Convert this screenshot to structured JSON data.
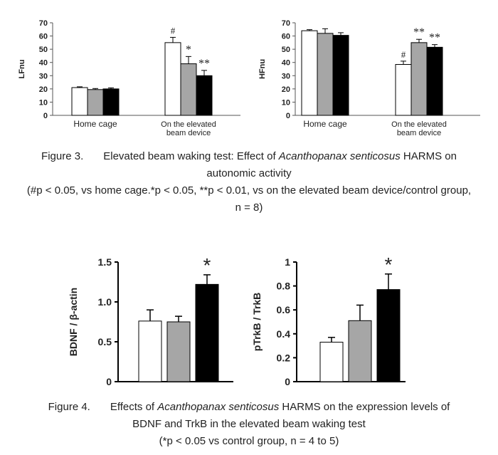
{
  "chart_data": [
    {
      "type": "bar",
      "ylabel": "LFnu",
      "ylim": [
        0,
        70
      ],
      "yticks": [
        "0",
        "10",
        "20",
        "30",
        "40",
        "50",
        "60",
        "70"
      ],
      "groups": [
        {
          "label_lines": [
            "Home cage"
          ],
          "values": [
            21,
            19.5,
            20
          ],
          "errors": [
            0.6,
            0.8,
            0.8
          ],
          "annotations": [
            "",
            "",
            ""
          ]
        },
        {
          "label_lines": [
            "On the elevated",
            "beam device"
          ],
          "values": [
            55,
            39,
            30
          ],
          "errors": [
            4,
            5.5,
            4
          ],
          "annotations": [
            "#",
            "*",
            "**"
          ]
        }
      ],
      "bar_colors": [
        "#ffffff",
        "#a6a6a6",
        "#000000"
      ]
    },
    {
      "type": "bar",
      "ylabel": "HFnu",
      "ylim": [
        0,
        70
      ],
      "yticks": [
        "0",
        "10",
        "20",
        "30",
        "40",
        "50",
        "60",
        "70"
      ],
      "groups": [
        {
          "label_lines": [
            "Home cage"
          ],
          "values": [
            64,
            62,
            60.5
          ],
          "errors": [
            0.8,
            3.5,
            2
          ],
          "annotations": [
            "",
            "",
            ""
          ]
        },
        {
          "label_lines": [
            "On the elevated",
            "beam device"
          ],
          "values": [
            38.5,
            55,
            51.5
          ],
          "errors": [
            2.5,
            2.5,
            2
          ],
          "annotations": [
            "#",
            "**",
            "**"
          ]
        }
      ],
      "bar_colors": [
        "#ffffff",
        "#a6a6a6",
        "#000000"
      ]
    },
    {
      "type": "bar",
      "ylabel": "BDNF / β-actin",
      "ylim": [
        0,
        1.5
      ],
      "yticks": [
        "0",
        "0.5",
        "1.0",
        "1.5"
      ],
      "values": [
        0.76,
        0.75,
        1.22
      ],
      "errors": [
        0.14,
        0.07,
        0.12
      ],
      "annotations": [
        "",
        "",
        "*"
      ],
      "bar_colors": [
        "#ffffff",
        "#a6a6a6",
        "#000000"
      ]
    },
    {
      "type": "bar",
      "ylabel": "pTrkB / TrkB",
      "ylim": [
        0,
        1
      ],
      "yticks": [
        "0",
        "0.2",
        "0.4",
        "0.6",
        "0.8",
        "1"
      ],
      "values": [
        0.33,
        0.51,
        0.77
      ],
      "errors": [
        0.04,
        0.13,
        0.13
      ],
      "annotations": [
        "",
        "",
        "*"
      ],
      "bar_colors": [
        "#ffffff",
        "#a6a6a6",
        "#000000"
      ]
    }
  ],
  "figure3": {
    "caption_label": "Figure 3.",
    "caption_pre": "Elevated beam waking test: Effect of ",
    "caption_species": "Acanthopanax senticosus",
    "caption_post1": " HARMS on",
    "caption_line2": "autonomic activity",
    "note_line1": "(#p < 0.05, vs home cage.*p < 0.05, **p < 0.01, vs on the elevated beam device/control group,",
    "note_line2": "n = 8)"
  },
  "figure4": {
    "caption_label": "Figure 4.",
    "caption_pre": "Effects of ",
    "caption_species": "Acanthopanax senticosus",
    "caption_post1": " HARMS on the expression levels of",
    "caption_line2": "BDNF and TrkB in the elevated beam waking test",
    "note_line1": "(*p < 0.05 vs control group, n = 4 to 5)"
  }
}
